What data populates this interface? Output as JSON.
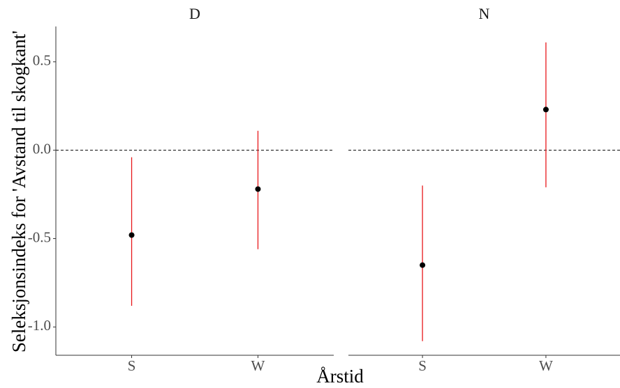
{
  "chart_data": {
    "type": "pointrange",
    "ylabel": "Seleksjonsindeks for 'Avstand til skogkant'",
    "xlabel": "Årstid",
    "ylim": [
      -1.16,
      0.7
    ],
    "yticks": [
      {
        "value": -1,
        "label": "-1.0"
      },
      -0.5,
      {
        "value": 0,
        "label": "0.0"
      },
      0.5
    ],
    "hline": 0,
    "point_color": "#000000",
    "range_color": "#e8191c",
    "panels": [
      {
        "title": "D",
        "categories": [
          "S",
          "W"
        ],
        "values": [
          -0.48,
          -0.22
        ],
        "lower": [
          -0.88,
          -0.56
        ],
        "upper": [
          -0.04,
          0.11
        ]
      },
      {
        "title": "N",
        "categories": [
          "S",
          "W"
        ],
        "values": [
          -0.65,
          0.23
        ],
        "lower": [
          -1.08,
          -0.21
        ],
        "upper": [
          -0.2,
          0.61
        ]
      }
    ]
  }
}
